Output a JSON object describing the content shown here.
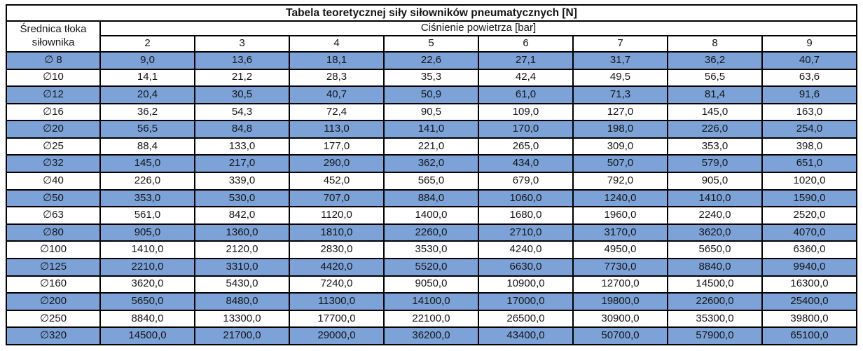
{
  "table": {
    "title": "Tabela teoretycznej siły siłowników pneumatycznych [N]",
    "row_header": "Średnica tłoka siłownika",
    "col_group_header": "Ciśnienie powietrza [bar]",
    "pressure_columns": [
      "2",
      "3",
      "4",
      "5",
      "6",
      "7",
      "8",
      "9"
    ],
    "rows": [
      {
        "diameter": "∅ 8",
        "values": [
          "9,0",
          "13,6",
          "18,1",
          "22,6",
          "27,1",
          "31,7",
          "36,2",
          "40,7"
        ]
      },
      {
        "diameter": "∅10",
        "values": [
          "14,1",
          "21,2",
          "28,3",
          "35,3",
          "42,4",
          "49,5",
          "56,5",
          "63,6"
        ]
      },
      {
        "diameter": "∅12",
        "values": [
          "20,4",
          "30,5",
          "40,7",
          "50,9",
          "61,0",
          "71,3",
          "81,4",
          "91,6"
        ]
      },
      {
        "diameter": "∅16",
        "values": [
          "36,2",
          "54,3",
          "72,4",
          "90,5",
          "109,0",
          "127,0",
          "145,0",
          "163,0"
        ]
      },
      {
        "diameter": "∅20",
        "values": [
          "56,5",
          "84,8",
          "113,0",
          "141,0",
          "170,0",
          "198,0",
          "226,0",
          "254,0"
        ]
      },
      {
        "diameter": "∅25",
        "values": [
          "88,4",
          "133,0",
          "177,0",
          "221,0",
          "265,0",
          "309,0",
          "353,0",
          "398,0"
        ]
      },
      {
        "diameter": "∅32",
        "values": [
          "145,0",
          "217,0",
          "290,0",
          "362,0",
          "434,0",
          "507,0",
          "579,0",
          "651,0"
        ]
      },
      {
        "diameter": "∅40",
        "values": [
          "226,0",
          "339,0",
          "452,0",
          "565,0",
          "679,0",
          "792,0",
          "905,0",
          "1020,0"
        ]
      },
      {
        "diameter": "∅50",
        "values": [
          "353,0",
          "530,0",
          "707,0",
          "884,0",
          "1060,0",
          "1240,0",
          "1410,0",
          "1590,0"
        ]
      },
      {
        "diameter": "∅63",
        "values": [
          "561,0",
          "842,0",
          "1120,0",
          "1400,0",
          "1680,0",
          "1960,0",
          "2240,0",
          "2520,0"
        ]
      },
      {
        "diameter": "∅80",
        "values": [
          "905,0",
          "1360,0",
          "1810,0",
          "2260,0",
          "2710,0",
          "3170,0",
          "3620,0",
          "4070,0"
        ]
      },
      {
        "diameter": "∅100",
        "values": [
          "1410,0",
          "2120,0",
          "2830,0",
          "3530,0",
          "4240,0",
          "4950,0",
          "5650,0",
          "6360,0"
        ]
      },
      {
        "diameter": "∅125",
        "values": [
          "2210,0",
          "3310,0",
          "4420,0",
          "5520,0",
          "6630,0",
          "7730,0",
          "8840,0",
          "9940,0"
        ]
      },
      {
        "diameter": "∅160",
        "values": [
          "3620,0",
          "5430,0",
          "7240,0",
          "9050,0",
          "10900,0",
          "12700,0",
          "14500,0",
          "16300,0"
        ]
      },
      {
        "diameter": "∅200",
        "values": [
          "5650,0",
          "8480,0",
          "11300,0",
          "14100,0",
          "17000,0",
          "19800,0",
          "22600,0",
          "25400,0"
        ]
      },
      {
        "diameter": "∅250",
        "values": [
          "8840,0",
          "13300,0",
          "17700,0",
          "22100,0",
          "26500,0",
          "30900,0",
          "35300,0",
          "39800,0"
        ]
      },
      {
        "diameter": "∅320",
        "values": [
          "14500,0",
          "21700,0",
          "29000,0",
          "36200,0",
          "43400,0",
          "50700,0",
          "57900,0",
          "65100,0"
        ]
      }
    ]
  },
  "colors": {
    "stripe_blue": "#7CA2D8",
    "stripe_white": "#FFFFFF",
    "border": "#000000",
    "text": "#151515"
  },
  "chart_data": {
    "type": "table",
    "title": "Tabela teoretycznej siły siłowników pneumatycznych [N]",
    "xlabel": "Ciśnienie powietrza [bar]",
    "ylabel": "Średnica tłoka siłownika",
    "columns": [
      2,
      3,
      4,
      5,
      6,
      7,
      8,
      9
    ],
    "rows": [
      {
        "diameter": "∅ 8",
        "values": [
          9.0,
          13.6,
          18.1,
          22.6,
          27.1,
          31.7,
          36.2,
          40.7
        ]
      },
      {
        "diameter": "∅10",
        "values": [
          14.1,
          21.2,
          28.3,
          35.3,
          42.4,
          49.5,
          56.5,
          63.6
        ]
      },
      {
        "diameter": "∅12",
        "values": [
          20.4,
          30.5,
          40.7,
          50.9,
          61.0,
          71.3,
          81.4,
          91.6
        ]
      },
      {
        "diameter": "∅16",
        "values": [
          36.2,
          54.3,
          72.4,
          90.5,
          109.0,
          127.0,
          145.0,
          163.0
        ]
      },
      {
        "diameter": "∅20",
        "values": [
          56.5,
          84.8,
          113.0,
          141.0,
          170.0,
          198.0,
          226.0,
          254.0
        ]
      },
      {
        "diameter": "∅25",
        "values": [
          88.4,
          133.0,
          177.0,
          221.0,
          265.0,
          309.0,
          353.0,
          398.0
        ]
      },
      {
        "diameter": "∅32",
        "values": [
          145.0,
          217.0,
          290.0,
          362.0,
          434.0,
          507.0,
          579.0,
          651.0
        ]
      },
      {
        "diameter": "∅40",
        "values": [
          226.0,
          339.0,
          452.0,
          565.0,
          679.0,
          792.0,
          905.0,
          1020.0
        ]
      },
      {
        "diameter": "∅50",
        "values": [
          353.0,
          530.0,
          707.0,
          884.0,
          1060.0,
          1240.0,
          1410.0,
          1590.0
        ]
      },
      {
        "diameter": "∅63",
        "values": [
          561.0,
          842.0,
          1120.0,
          1400.0,
          1680.0,
          1960.0,
          2240.0,
          2520.0
        ]
      },
      {
        "diameter": "∅80",
        "values": [
          905.0,
          1360.0,
          1810.0,
          2260.0,
          2710.0,
          3170.0,
          3620.0,
          4070.0
        ]
      },
      {
        "diameter": "∅100",
        "values": [
          1410.0,
          2120.0,
          2830.0,
          3530.0,
          4240.0,
          4950.0,
          5650.0,
          6360.0
        ]
      },
      {
        "diameter": "∅125",
        "values": [
          2210.0,
          3310.0,
          4420.0,
          5520.0,
          6630.0,
          7730.0,
          8840.0,
          9940.0
        ]
      },
      {
        "diameter": "∅160",
        "values": [
          3620.0,
          5430.0,
          7240.0,
          9050.0,
          10900.0,
          12700.0,
          14500.0,
          16300.0
        ]
      },
      {
        "diameter": "∅200",
        "values": [
          5650.0,
          8480.0,
          11300.0,
          14100.0,
          17000.0,
          19800.0,
          22600.0,
          25400.0
        ]
      },
      {
        "diameter": "∅250",
        "values": [
          8840.0,
          13300.0,
          17700.0,
          22100.0,
          26500.0,
          30900.0,
          35300.0,
          39800.0
        ]
      },
      {
        "diameter": "∅320",
        "values": [
          14500.0,
          21700.0,
          29000.0,
          36200.0,
          43400.0,
          50700.0,
          57900.0,
          65100.0
        ]
      }
    ],
    "layout": {
      "grid": true,
      "legend": "none",
      "striped_rows": true,
      "first_stripe": "blue"
    }
  }
}
